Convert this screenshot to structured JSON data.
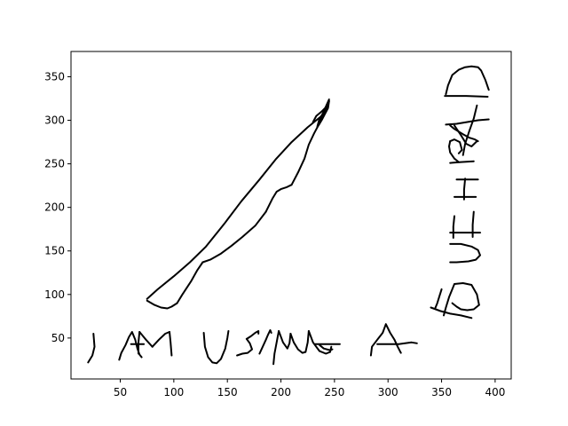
{
  "chart_data": {
    "type": "line",
    "title": "",
    "xlabel": "",
    "ylabel": "",
    "xlim": [
      4,
      415
    ],
    "ylim": [
      3,
      379
    ],
    "xticks": [
      50,
      100,
      150,
      200,
      250,
      300,
      350,
      400
    ],
    "yticks": [
      50,
      100,
      150,
      200,
      250,
      300,
      350
    ],
    "grid": false,
    "legend": "none",
    "line_color": "#000000",
    "series": [
      {
        "x": [
          20,
          24,
          26,
          25
        ],
        "y": [
          22,
          30,
          40,
          55
        ]
      },
      {
        "x": [
          49,
          51,
          55,
          58,
          61,
          64,
          66,
          68,
          70
        ],
        "y": [
          25,
          33,
          42,
          51,
          57,
          48,
          38,
          31,
          28
        ]
      },
      {
        "x": [
          60,
          72
        ],
        "y": [
          43,
          43
        ]
      },
      {
        "x": [
          67,
          67,
          68
        ],
        "y": [
          32,
          45,
          57
        ]
      },
      {
        "x": [
          68,
          74,
          80
        ],
        "y": [
          57,
          48,
          40
        ]
      },
      {
        "x": [
          80,
          86,
          92,
          96
        ],
        "y": [
          40,
          48,
          55,
          57
        ]
      },
      {
        "x": [
          96,
          97,
          98
        ],
        "y": [
          57,
          45,
          30
        ]
      },
      {
        "x": [
          128,
          129,
          132,
          136,
          140,
          144,
          148,
          150,
          151
        ],
        "y": [
          56,
          40,
          28,
          22,
          21,
          26,
          38,
          50,
          58
        ]
      },
      {
        "x": [
          159,
          164,
          169,
          173,
          171,
          168
        ],
        "y": [
          30,
          32,
          33,
          37,
          44,
          49
        ]
      },
      {
        "x": [
          168,
          172,
          176,
          179,
          179
        ],
        "y": [
          49,
          52,
          56,
          58,
          55
        ]
      },
      {
        "x": [
          180,
          183,
          186,
          188,
          190,
          191
        ],
        "y": [
          32,
          40,
          48,
          54,
          59,
          56
        ]
      },
      {
        "x": [
          193,
          194,
          196,
          198
        ],
        "y": [
          20,
          32,
          45,
          58
        ]
      },
      {
        "x": [
          198,
          202,
          206,
          208,
          209
        ],
        "y": [
          58,
          45,
          38,
          44,
          55
        ]
      },
      {
        "x": [
          209,
          212,
          216,
          220,
          223,
          225,
          226
        ],
        "y": [
          55,
          45,
          37,
          33,
          34,
          45,
          58
        ]
      },
      {
        "x": [
          226,
          230,
          236,
          242,
          246,
          247
        ],
        "y": [
          58,
          45,
          35,
          32,
          34,
          40
        ]
      },
      {
        "x": [
          232,
          255
        ],
        "y": [
          43,
          43
        ]
      },
      {
        "x": [
          236,
          240,
          246,
          248
        ],
        "y": [
          42,
          38,
          36,
          37
        ]
      },
      {
        "x": [
          284,
          285,
          290,
          295,
          298,
          302,
          306,
          309,
          312
        ],
        "y": [
          30,
          40,
          48,
          56,
          66,
          56,
          48,
          40,
          33
        ]
      },
      {
        "x": [
          290,
          310,
          316,
          322,
          327
        ],
        "y": [
          43,
          43,
          44,
          45,
          44
        ]
      },
      {
        "x": [
          75,
          82,
          88,
          94,
          98,
          103
        ],
        "y": [
          93,
          88,
          85,
          84,
          86,
          90
        ]
      },
      {
        "x": [
          103,
          108,
          116,
          122,
          127
        ],
        "y": [
          90,
          100,
          115,
          128,
          137
        ]
      },
      {
        "x": [
          127,
          134,
          144,
          154,
          164,
          176,
          186
        ],
        "y": [
          137,
          140,
          147,
          156,
          166,
          179,
          195
        ]
      },
      {
        "x": [
          186,
          192,
          196,
          200,
          205,
          210
        ],
        "y": [
          195,
          210,
          218,
          221,
          223,
          226
        ]
      },
      {
        "x": [
          210,
          216,
          222,
          226,
          231,
          234
        ],
        "y": [
          226,
          240,
          256,
          272,
          285,
          292
        ]
      },
      {
        "x": [
          234,
          238,
          241,
          244,
          245
        ],
        "y": [
          292,
          300,
          307,
          314,
          322
        ]
      },
      {
        "x": [
          75,
          85,
          100,
          115,
          130,
          147,
          163,
          180,
          195,
          210,
          225,
          238,
          245
        ],
        "y": [
          95,
          106,
          121,
          137,
          155,
          181,
          207,
          232,
          255,
          275,
          292,
          305,
          324
        ]
      },
      {
        "x": [
          230,
          233,
          238,
          242,
          245
        ],
        "y": [
          298,
          305,
          310,
          315,
          322
        ]
      },
      {
        "x": [
          234,
          236,
          240,
          243
        ],
        "y": [
          293,
          302,
          309,
          318
        ]
      },
      {
        "x": [
          236,
          238,
          242,
          244
        ],
        "y": [
          296,
          304,
          312,
          320
        ]
      },
      {
        "x": [
          344,
          346,
          348,
          350
        ],
        "y": [
          84,
          90,
          98,
          106
        ]
      },
      {
        "x": [
          340,
          349,
          358,
          368,
          378
        ],
        "y": [
          85,
          81,
          78,
          76,
          73
        ]
      },
      {
        "x": [
          352,
          354,
          357,
          362,
          370,
          378,
          383,
          385
        ],
        "y": [
          76,
          85,
          97,
          112,
          113,
          111,
          100,
          88
        ]
      },
      {
        "x": [
          385,
          380,
          374,
          368,
          364,
          360
        ],
        "y": [
          88,
          83,
          82,
          83,
          86,
          90
        ]
      },
      {
        "x": [
          358,
          368,
          378,
          384,
          386,
          382,
          375,
          364,
          358
        ],
        "y": [
          158,
          158,
          155,
          151,
          145,
          140,
          138,
          137,
          137
        ]
      },
      {
        "x": [
          361,
          361,
          362
        ],
        "y": [
          165,
          178,
          190
        ]
      },
      {
        "x": [
          379,
          379,
          380
        ],
        "y": [
          166,
          180,
          195
        ]
      },
      {
        "x": [
          358,
          372,
          386
        ],
        "y": [
          171,
          171,
          171
        ]
      },
      {
        "x": [
          364,
          374,
          384
        ],
        "y": [
          232,
          232,
          232
        ]
      },
      {
        "x": [
          372,
          371,
          371
        ],
        "y": [
          233,
          220,
          209
        ]
      },
      {
        "x": [
          362,
          372,
          382
        ],
        "y": [
          212,
          212,
          212
        ]
      },
      {
        "x": [
          358,
          368,
          380
        ],
        "y": [
          251,
          252,
          253
        ]
      },
      {
        "x": [
          366,
          362,
          358,
          357,
          358
        ],
        "y": [
          252,
          256,
          263,
          270,
          276
        ]
      },
      {
        "x": [
          358,
          362,
          367,
          369,
          366
        ],
        "y": [
          276,
          278,
          275,
          266,
          262
        ]
      },
      {
        "x": [
          354,
          364,
          374,
          384,
          394
        ],
        "y": [
          295,
          296,
          298,
          300,
          301
        ]
      },
      {
        "x": [
          370,
          372,
          376,
          380,
          383
        ],
        "y": [
          260,
          273,
          288,
          302,
          317
        ]
      },
      {
        "x": [
          362,
          368,
          373,
          378,
          383
        ],
        "y": [
          294,
          283,
          273,
          270,
          276
        ]
      },
      {
        "x": [
          358,
          362,
          370,
          376,
          381,
          384
        ],
        "y": [
          294,
          290,
          284,
          280,
          278,
          276
        ]
      },
      {
        "x": [
          354,
          356,
          360,
          366,
          372,
          378,
          384,
          387,
          391,
          394
        ],
        "y": [
          330,
          340,
          352,
          358,
          361,
          362,
          361,
          357,
          346,
          335
        ]
      },
      {
        "x": [
          353,
          373,
          393
        ],
        "y": [
          328,
          328,
          327
        ]
      }
    ]
  }
}
